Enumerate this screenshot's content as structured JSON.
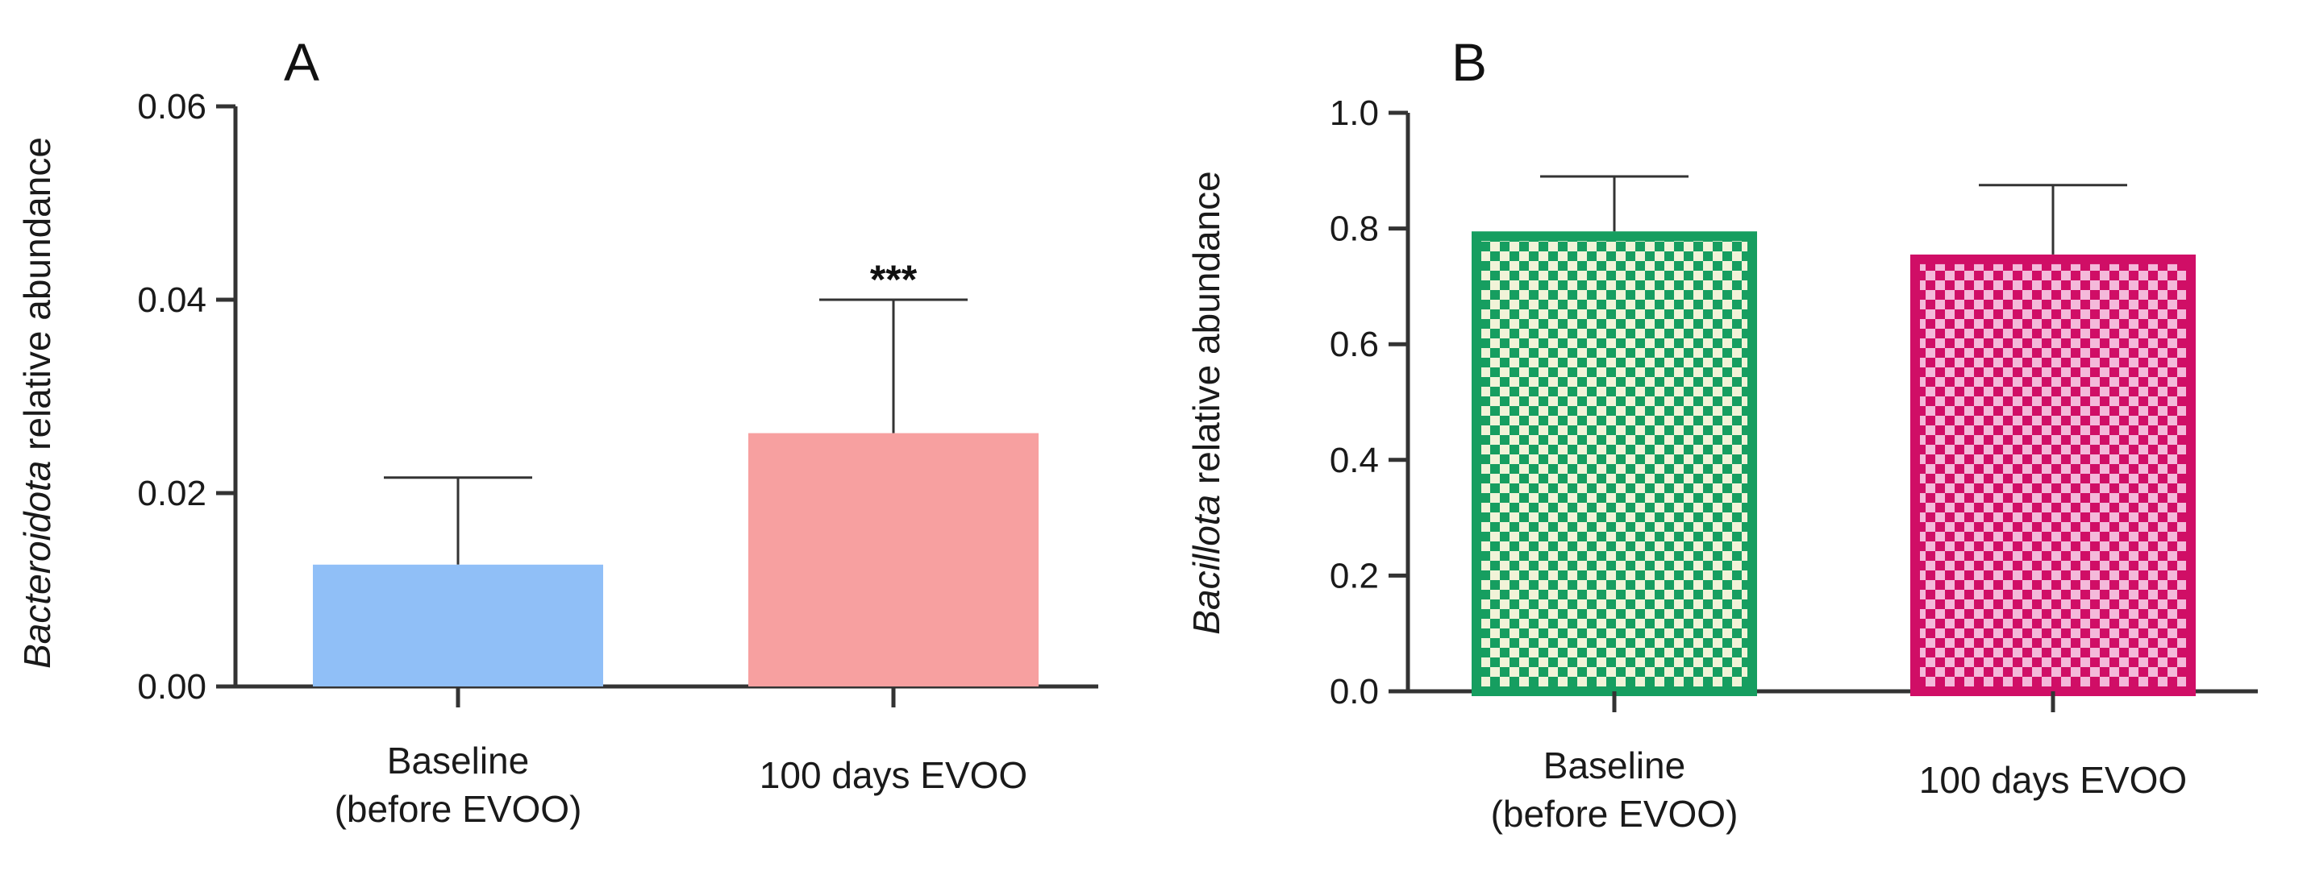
{
  "colors": {
    "axis": "#333333",
    "text": "#1a1a1a",
    "a_baseline": "#90bff7",
    "a_evoo": "#f7a0a0",
    "b_baseline_edge": "#169e60",
    "b_baseline_fill": "#f1f3d8",
    "b_evoo_edge": "#d00e66",
    "b_evoo_fill": "#f4b9da"
  },
  "chart_data": [
    {
      "type": "bar",
      "panel": "A",
      "title": "",
      "ylabel_italic": "Bacteroidota",
      "ylabel_rest": " relative abundance",
      "xlabel": "",
      "ylim": [
        0,
        0.06
      ],
      "yticks": [
        0,
        0.02,
        0.04,
        0.06
      ],
      "yticklabels": [
        "0.00",
        "0.02",
        "0.04",
        "0.06"
      ],
      "categories": [
        [
          "Baseline",
          "(before EVOO)"
        ],
        [
          "100 days EVOO"
        ]
      ],
      "values": [
        0.0126,
        0.0262
      ],
      "errors": [
        0.009,
        0.0138
      ],
      "annotations": [
        "",
        "***"
      ],
      "grid": false
    },
    {
      "type": "bar",
      "panel": "B",
      "title": "",
      "ylabel_italic": "Bacillota",
      "ylabel_rest": " relative abundance",
      "xlabel": "",
      "ylim": [
        0,
        1.0
      ],
      "yticks": [
        0,
        0.2,
        0.4,
        0.6,
        0.8,
        1.0
      ],
      "yticklabels": [
        "0.0",
        "0.2",
        "0.4",
        "0.6",
        "0.8",
        "1.0"
      ],
      "categories": [
        [
          "Baseline",
          "(before EVOO)"
        ],
        [
          "100 days EVOO"
        ]
      ],
      "values": [
        0.795,
        0.755
      ],
      "errors": [
        0.095,
        0.12
      ],
      "annotations": [
        "",
        ""
      ],
      "grid": false
    }
  ]
}
